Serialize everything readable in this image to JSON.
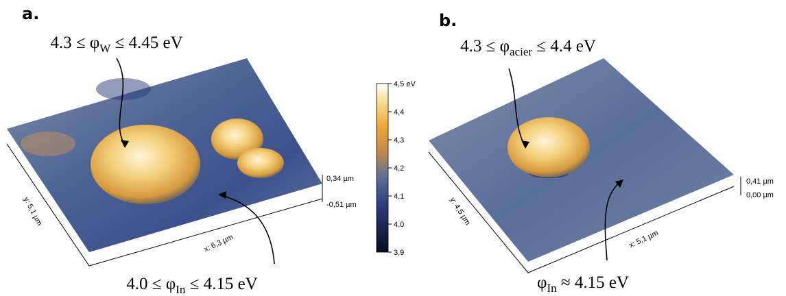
{
  "panels": [
    {
      "label": "a.",
      "top_annotation": {
        "before": "4.3 ≤ φ",
        "subscript": "W",
        "after": " ≤ 4.45 eV"
      },
      "bottom_annotation": {
        "before": "4.0 ≤ φ",
        "subscript": "In",
        "after": " ≤ 4.15 eV"
      },
      "y_axis": "y: 5,1 µm",
      "x_axis": "x: 6,3 µm",
      "height_scale": [
        "0,34 µm",
        "-0,51 µm"
      ]
    },
    {
      "label": "b.",
      "top_annotation": {
        "before": "4.3 ≤ φ",
        "subscript": "acier",
        "after": " ≤ 4.4 eV"
      },
      "bottom_annotation": {
        "before": "φ",
        "subscript": "In",
        "after": " ≈ 4.15 eV"
      },
      "y_axis": "y: 4,5 µm",
      "x_axis": "x: 5,1 µm",
      "height_scale": [
        "0,41 µm",
        "0,00 µm"
      ]
    }
  ],
  "colorbar": {
    "ticks": [
      "4,5 eV",
      "4,4",
      "4,3",
      "4,2",
      "4,1",
      "4,0",
      "3,9"
    ]
  }
}
